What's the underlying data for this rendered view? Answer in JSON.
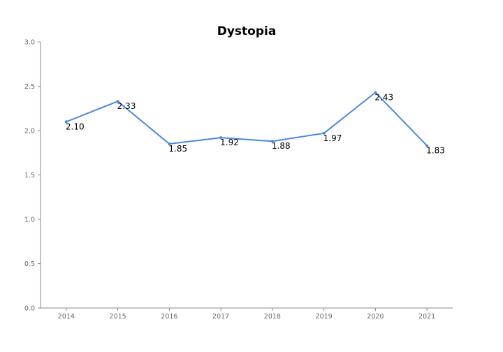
{
  "chart_data": {
    "type": "line",
    "title": "Dystopia",
    "xlabel": "",
    "ylabel": "",
    "categories": [
      "2014",
      "2015",
      "2016",
      "2017",
      "2018",
      "2019",
      "2020",
      "2021"
    ],
    "series": [
      {
        "values": [
          2.1,
          2.33,
          1.85,
          1.92,
          1.88,
          1.97,
          2.43,
          1.83
        ],
        "color": "#4a88e0"
      }
    ],
    "data_labels": [
      "2.10",
      "2.33",
      "1.85",
      "1.92",
      "1.88",
      "1.97",
      "2.43",
      "1.83"
    ],
    "ylim": [
      0,
      3.0
    ],
    "yticks": [
      "0.0",
      "0.5",
      "1.0",
      "1.5",
      "2.0",
      "2.5",
      "3.0"
    ],
    "ytick_values": [
      0,
      0.5,
      1.0,
      1.5,
      2.0,
      2.5,
      3.0
    ],
    "grid": false,
    "legend": "none"
  }
}
